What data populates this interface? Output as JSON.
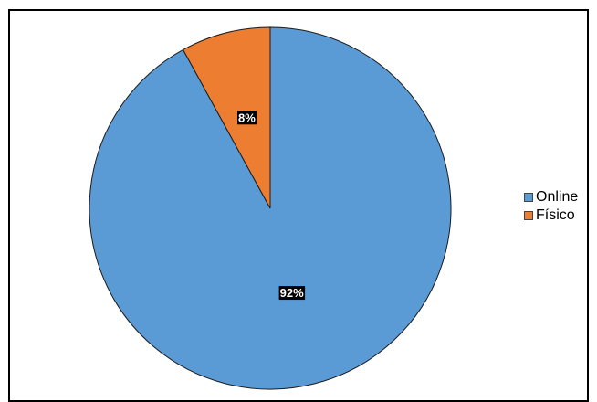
{
  "chart_data": {
    "type": "pie",
    "title": "",
    "slices": [
      {
        "label": "Online",
        "value": 92,
        "data_label": "92%",
        "color": "#5B9BD5"
      },
      {
        "label": "Físico",
        "value": 8,
        "data_label": "8%",
        "color": "#ED7D31"
      }
    ],
    "start_angle": "12 o'clock",
    "direction": "clockwise",
    "legend": {
      "position": "right",
      "items": [
        "Online",
        "Físico"
      ]
    },
    "data_label_style": {
      "background": "#000000",
      "text_color": "#ffffff"
    },
    "slice_border_color": "#1a1a1a"
  }
}
